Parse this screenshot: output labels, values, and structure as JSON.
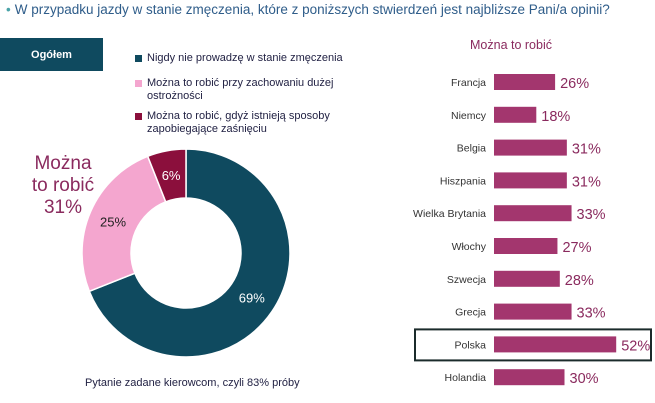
{
  "question": "W przypadku jazdy w stanie zmęczenia, które z poniższych stwierdzeń jest najbliższe Pani/a opinii?",
  "question_bullet": "•",
  "tag_label": "Ogółem",
  "callout": {
    "line1": "Można",
    "line2": "to robić",
    "value": "31%"
  },
  "footnote": "Pytanie zadane kierowcom, czyli 83% próby",
  "right_title": "Można to robić",
  "colors": {
    "navy": "#0f4a5f",
    "pink": "#f4a6cf",
    "maroon": "#8b0f3c",
    "bar": "#a3366e",
    "label": "#8a2a5e"
  },
  "chart_data": [
    {
      "type": "pie",
      "donut": true,
      "title": "Ogółem",
      "slices": [
        {
          "label": "Nigdy nie prowadzę w stanie zmęczenia",
          "value": 69,
          "text": "69%",
          "color": "#0f4a5f"
        },
        {
          "label": "Można to robić przy zachowaniu dużej ostrożności",
          "value": 25,
          "text": "25%",
          "color": "#f4a6cf"
        },
        {
          "label": "Można to robić, gdyż istnieją sposoby zapobiegające zaśnięciu",
          "value": 6,
          "text": "6%",
          "color": "#8b0f3c"
        }
      ]
    },
    {
      "type": "bar",
      "orientation": "horizontal",
      "title": "Można to robić",
      "categories": [
        "Francja",
        "Niemcy",
        "Belgia",
        "Hiszpania",
        "Wielka Brytania",
        "Włochy",
        "Szwecja",
        "Grecja",
        "Polska",
        "Holandia"
      ],
      "values": [
        26,
        18,
        31,
        31,
        33,
        27,
        28,
        33,
        52,
        30
      ],
      "labels": [
        "26%",
        "18%",
        "31%",
        "31%",
        "33%",
        "27%",
        "28%",
        "33%",
        "52%",
        "30%"
      ],
      "highlight": "Polska"
    }
  ]
}
